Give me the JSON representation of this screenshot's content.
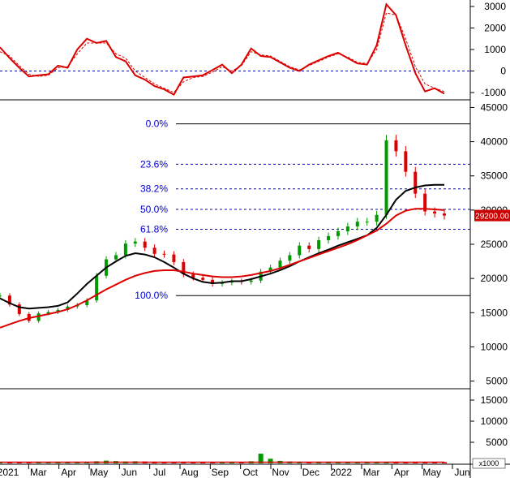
{
  "chart_data": [
    {
      "type": "line",
      "panel": "oscillator",
      "ylim": [
        -1300,
        3300
      ],
      "yticks": [
        3000,
        2000,
        1000,
        0,
        -1000
      ],
      "reference_line": 0,
      "series": [
        {
          "color": "#dd0000",
          "style": "solid",
          "values": [
            1100,
            600,
            150,
            -250,
            -200,
            -150,
            250,
            150,
            1000,
            1500,
            1300,
            1400,
            650,
            450,
            -200,
            -400,
            -700,
            -850,
            -1100,
            -300,
            -250,
            -200,
            50,
            300,
            -100,
            300,
            1050,
            700,
            650,
            400,
            150,
            0,
            300,
            500,
            700,
            850,
            600,
            350,
            300,
            1200,
            3100,
            2600,
            1200,
            -100,
            -950,
            -800,
            -1050
          ]
        },
        {
          "color": "#dd0000",
          "style": "dashed",
          "values": [
            900,
            700,
            250,
            -150,
            -250,
            -200,
            150,
            200,
            800,
            1300,
            1300,
            1300,
            800,
            600,
            0,
            -300,
            -600,
            -800,
            -1000,
            -500,
            -300,
            -250,
            -50,
            200,
            0,
            250,
            900,
            750,
            700,
            450,
            200,
            50,
            250,
            450,
            650,
            800,
            650,
            400,
            350,
            1000,
            2700,
            2600,
            1500,
            200,
            -600,
            -800,
            -950
          ]
        }
      ]
    },
    {
      "type": "candlestick",
      "panel": "price",
      "ylim": [
        4000,
        46000
      ],
      "yticks": [
        45000,
        40000,
        35000,
        30000,
        25000,
        20000,
        15000,
        10000,
        5000
      ],
      "last_price": 29200,
      "last_price_label": "29200.00",
      "ohlc_close": [
        17500,
        16200,
        14800,
        13800,
        14900,
        15100,
        15400,
        15900,
        16100,
        16800,
        20400,
        22800,
        23400,
        25100,
        25400,
        24500,
        23600,
        23500,
        22400,
        20600,
        20100,
        19800,
        19200,
        19400,
        19600,
        19500,
        19700,
        21000,
        21600,
        22600,
        23400,
        24800,
        24300,
        25600,
        26200,
        26900,
        27600,
        28300,
        28300,
        29300,
        40200,
        38600,
        35600,
        32400,
        29800,
        29500,
        29200
      ],
      "moving_averages": [
        {
          "color": "#000000",
          "values": [
            17100,
            16400,
            15800,
            15600,
            15700,
            15800,
            16000,
            16500,
            17800,
            19200,
            20400,
            21600,
            22500,
            23300,
            23700,
            23500,
            23100,
            22400,
            21600,
            20700,
            20000,
            19500,
            19300,
            19400,
            19600,
            19600,
            19900,
            20300,
            20700,
            21200,
            21800,
            22500,
            23100,
            23700,
            24200,
            24800,
            25300,
            25800,
            26300,
            27400,
            29300,
            31500,
            32800,
            33300,
            33600,
            33700,
            33700
          ]
        },
        {
          "color": "#dd0000",
          "values": [
            12800,
            13300,
            13800,
            14200,
            14500,
            14800,
            15100,
            15500,
            16100,
            16800,
            17600,
            18400,
            19100,
            19800,
            20400,
            20800,
            21100,
            21200,
            21200,
            21000,
            20700,
            20500,
            20300,
            20200,
            20200,
            20300,
            20500,
            20800,
            21100,
            21500,
            22000,
            22500,
            23000,
            23500,
            24000,
            24500,
            25000,
            25600,
            26300,
            27000,
            28000,
            29200,
            29900,
            30200,
            30200,
            30100,
            30000
          ]
        }
      ],
      "fibonacci": [
        {
          "label": "0.0%",
          "value": 42600
        },
        {
          "label": "23.6%",
          "value": 36700
        },
        {
          "label": "38.2%",
          "value": 33100
        },
        {
          "label": "50.0%",
          "value": 30100
        },
        {
          "label": "61.8%",
          "value": 27200
        },
        {
          "label": "100.0%",
          "value": 17500
        }
      ]
    },
    {
      "type": "bar",
      "panel": "volume",
      "ylim": [
        0,
        17500
      ],
      "yticks": [
        15000,
        10000,
        5000,
        0
      ],
      "unit_label": "x1000",
      "values": [
        300,
        350,
        300,
        250,
        350,
        300,
        300,
        300,
        250,
        350,
        500,
        650,
        550,
        450,
        500,
        450,
        400,
        350,
        300,
        300,
        250,
        300,
        300,
        350,
        400,
        350,
        500,
        2300,
        1100,
        600,
        450,
        400,
        350,
        350,
        400,
        350,
        300,
        250,
        300,
        350,
        350,
        400,
        350,
        300,
        300,
        350,
        300
      ]
    }
  ],
  "x_axis": {
    "labels": [
      "2021",
      "Mar",
      "Apr",
      "May",
      "Jun",
      "Jul",
      "Aug",
      "Sep",
      "Oct",
      "Nov",
      "Dec",
      "2022",
      "Mar",
      "Apr",
      "May",
      "Jun"
    ]
  },
  "colors": {
    "up": "#009900",
    "down": "#dd0000",
    "fib": "#0000cc",
    "grid": "#0000aa"
  }
}
